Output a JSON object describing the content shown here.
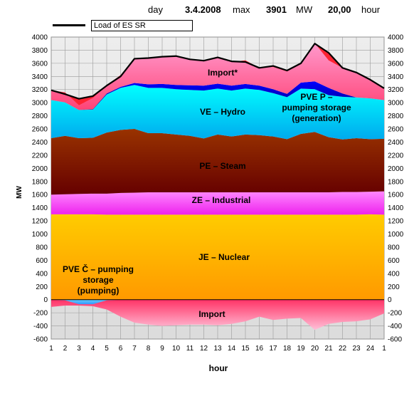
{
  "header": {
    "day_label": "day",
    "date": "3.4.2008",
    "max_label": "max",
    "max_value": "3901",
    "unit": "MW",
    "max_time": "20,00",
    "time_unit": "hour"
  },
  "legend": {
    "load_label": "Load of ES SR"
  },
  "chart_data": {
    "type": "area",
    "stacked": true,
    "xlabel": "hour",
    "ylabel": "MW",
    "ylim": [
      -600,
      4000
    ],
    "y_ticks": [
      -600,
      -400,
      -200,
      0,
      200,
      400,
      600,
      800,
      1000,
      1200,
      1400,
      1600,
      1800,
      2000,
      2200,
      2400,
      2600,
      2800,
      3000,
      3200,
      3400,
      3600,
      3800,
      4000
    ],
    "x_tick_labels": [
      "1",
      "2",
      "3",
      "4",
      "5",
      "6",
      "7",
      "8",
      "9",
      "10",
      "11",
      "12",
      "13",
      "14",
      "15",
      "16",
      "17",
      "18",
      "19",
      "20",
      "21",
      "22",
      "23",
      "24",
      "1"
    ],
    "grid": true,
    "load_series": {
      "name": "Load of ES SR",
      "values": [
        3190,
        3130,
        3060,
        3100,
        3260,
        3400,
        3670,
        3680,
        3700,
        3710,
        3660,
        3640,
        3690,
        3630,
        3620,
        3530,
        3560,
        3490,
        3600,
        3900,
        3760,
        3530,
        3460,
        3350,
        3220
      ]
    },
    "series": [
      {
        "name": "JE – Nuclear",
        "label": "JE – Nuclear",
        "color": "#ffcc00",
        "values": [
          1300,
          1300,
          1300,
          1300,
          1295,
          1295,
          1295,
          1295,
          1295,
          1295,
          1295,
          1295,
          1295,
          1295,
          1295,
          1295,
          1295,
          1295,
          1295,
          1295,
          1295,
          1295,
          1295,
          1300,
          1295
        ]
      },
      {
        "name": "ZE – Industrial",
        "label": "ZE – Industrial",
        "color": "#ff66ff",
        "values": [
          300,
          305,
          310,
          315,
          320,
          330,
          335,
          340,
          340,
          340,
          340,
          340,
          340,
          340,
          340,
          340,
          340,
          340,
          340,
          340,
          340,
          345,
          345,
          345,
          355
        ]
      },
      {
        "name": "PE – Steam",
        "label": "PE – Steam",
        "color": "#993300",
        "values": [
          860,
          890,
          850,
          850,
          930,
          960,
          970,
          900,
          900,
          880,
          860,
          820,
          880,
          850,
          880,
          870,
          850,
          810,
          890,
          920,
          840,
          800,
          820,
          800,
          800
        ]
      },
      {
        "name": "VE – Hydro",
        "label": "VE – Hydro",
        "color": "#00ffff",
        "values": [
          580,
          510,
          430,
          430,
          580,
          640,
          670,
          690,
          690,
          690,
          700,
          730,
          700,
          700,
          700,
          690,
          660,
          640,
          690,
          650,
          640,
          650,
          620,
          620,
          590
        ]
      },
      {
        "name": "PVE P – pumping storage (generation)",
        "label": "PVE P – pumping storage (generation)",
        "color": "#0000cc",
        "values": [
          0,
          0,
          0,
          5,
          15,
          15,
          30,
          55,
          60,
          65,
          70,
          75,
          75,
          75,
          70,
          65,
          60,
          50,
          90,
          120,
          110,
          50,
          0,
          0,
          0
        ]
      },
      {
        "name": "Import*",
        "label": "Import*",
        "color": "#ff8fb0",
        "values": [
          150,
          150,
          70,
          170,
          125,
          180,
          380,
          400,
          410,
          430,
          400,
          370,
          390,
          360,
          360,
          270,
          340,
          340,
          300,
          580,
          420,
          390,
          380,
          290,
          180
        ]
      }
    ],
    "negative_series": [
      {
        "name": "Import",
        "label": "Import",
        "color": "#ff8fb0",
        "values": [
          -110,
          -90,
          -90,
          -100,
          -150,
          -260,
          -350,
          -380,
          -400,
          -390,
          -380,
          -380,
          -390,
          -370,
          -330,
          -260,
          -310,
          -290,
          -280,
          -460,
          -370,
          -340,
          -330,
          -300,
          -210
        ]
      },
      {
        "name": "PVE Č – pumping storage (pumping)",
        "label": "PVE Č – pumping storage (pumping)",
        "color": "#3399ff",
        "values": [
          0,
          -10,
          -70,
          -70,
          -10,
          0,
          0,
          0,
          0,
          0,
          0,
          0,
          0,
          0,
          0,
          0,
          0,
          0,
          0,
          0,
          0,
          0,
          0,
          0,
          0
        ]
      }
    ]
  }
}
